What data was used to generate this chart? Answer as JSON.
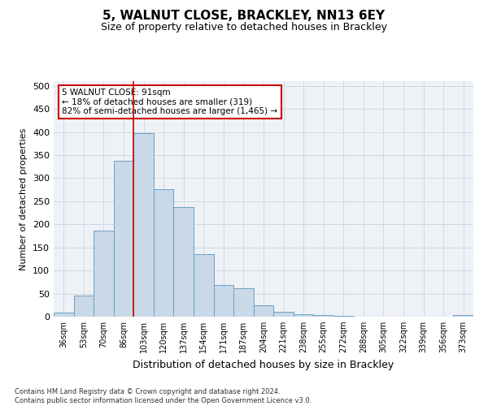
{
  "title": "5, WALNUT CLOSE, BRACKLEY, NN13 6EY",
  "subtitle": "Size of property relative to detached houses in Brackley",
  "xlabel": "Distribution of detached houses by size in Brackley",
  "ylabel": "Number of detached properties",
  "categories": [
    "36sqm",
    "53sqm",
    "70sqm",
    "86sqm",
    "103sqm",
    "120sqm",
    "137sqm",
    "154sqm",
    "171sqm",
    "187sqm",
    "204sqm",
    "221sqm",
    "238sqm",
    "255sqm",
    "272sqm",
    "288sqm",
    "305sqm",
    "322sqm",
    "339sqm",
    "356sqm",
    "373sqm"
  ],
  "values": [
    8,
    46,
    186,
    338,
    398,
    276,
    238,
    136,
    69,
    62,
    24,
    11,
    5,
    3,
    1,
    0,
    0,
    0,
    0,
    0,
    3
  ],
  "bar_color": "#c9d9e8",
  "bar_edge_color": "#6aa0c7",
  "grid_color": "#d0d8e0",
  "background_color": "#eef2f7",
  "vline_x": 4.0,
  "vline_color": "#cc0000",
  "annotation_text": "5 WALNUT CLOSE: 91sqm\n← 18% of detached houses are smaller (319)\n82% of semi-detached houses are larger (1,465) →",
  "annotation_box_color": "#ffffff",
  "annotation_box_edge_color": "#cc0000",
  "footnote": "Contains HM Land Registry data © Crown copyright and database right 2024.\nContains public sector information licensed under the Open Government Licence v3.0.",
  "ylim": [
    0,
    510
  ],
  "yticks": [
    0,
    50,
    100,
    150,
    200,
    250,
    300,
    350,
    400,
    450,
    500
  ],
  "title_fontsize": 11,
  "subtitle_fontsize": 9,
  "ylabel_fontsize": 8,
  "xlabel_fontsize": 9,
  "tick_fontsize": 7,
  "footnote_fontsize": 6
}
